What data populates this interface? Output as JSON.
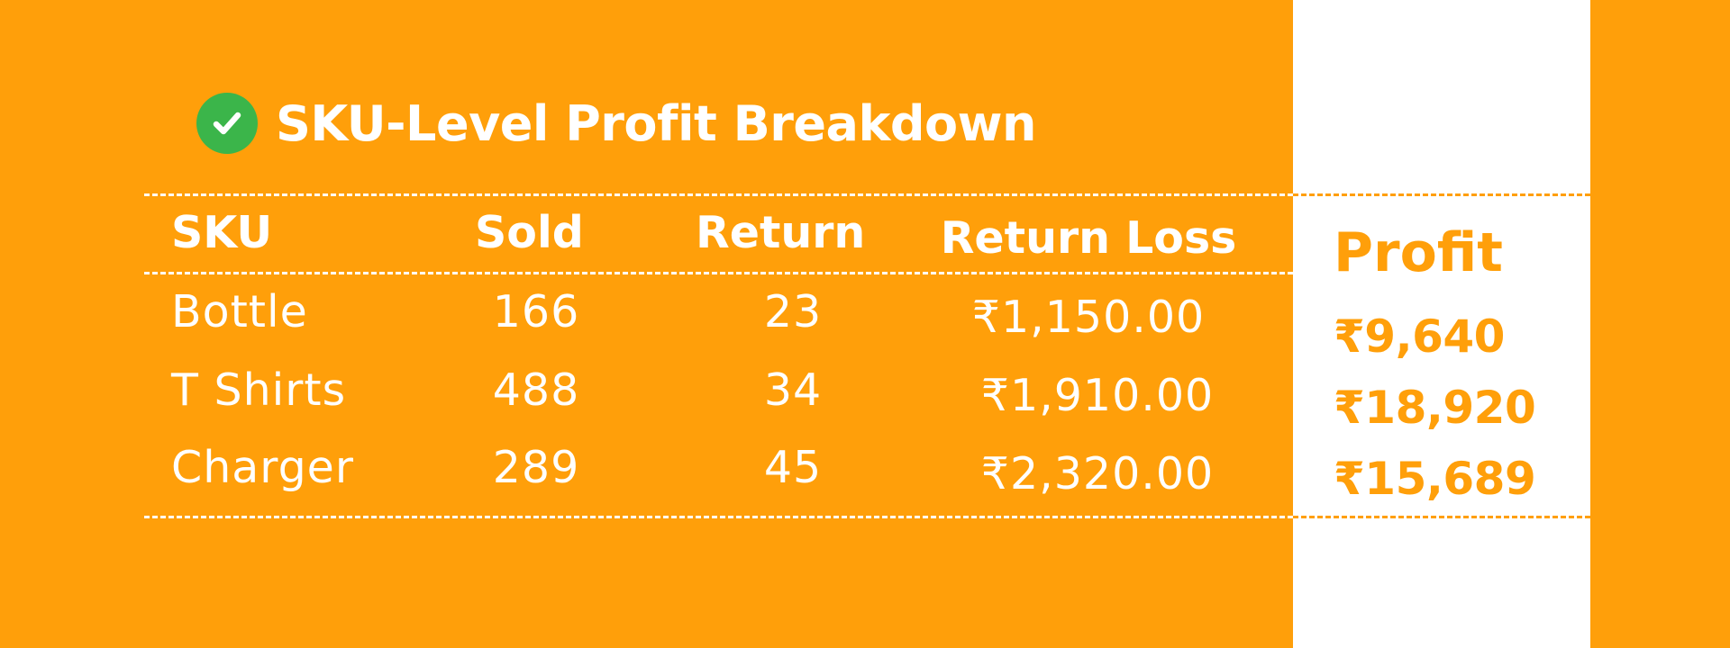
{
  "title": "SKU-Level Profit Breakdown",
  "colors": {
    "background": "#FF9F0A",
    "accent_panel": "#FFFFFF",
    "check_badge": "#3BB54A",
    "text_on_orange": "#FFFFFF",
    "text_on_white": "#FF9F0A"
  },
  "table": {
    "headers": {
      "sku": "SKU",
      "sold": "Sold",
      "return": "Return",
      "return_loss": "Return Loss",
      "profit": "Profit"
    },
    "rows": [
      {
        "sku": "Bottle",
        "sold": "166",
        "return": "23",
        "return_loss": "₹1,150.00",
        "profit": "₹9,640"
      },
      {
        "sku": "T Shirts",
        "sold": "488",
        "return": "34",
        "return_loss": "₹1,910.00",
        "profit": "₹18,920"
      },
      {
        "sku": "Charger",
        "sold": "289",
        "return": "45",
        "return_loss": "₹2,320.00",
        "profit": "₹15,689"
      }
    ]
  }
}
